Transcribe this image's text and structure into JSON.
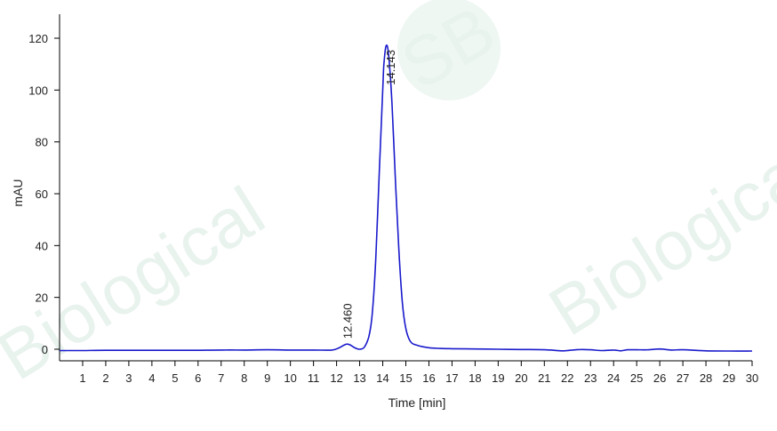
{
  "chart_data": {
    "type": "line",
    "title": "",
    "xlabel": "Time [min]",
    "ylabel": "mAU",
    "xlim": [
      0,
      30
    ],
    "ylim": [
      -3,
      128
    ],
    "x_ticks": [
      1,
      2,
      3,
      4,
      5,
      6,
      7,
      8,
      9,
      10,
      11,
      12,
      13,
      14,
      15,
      16,
      17,
      18,
      19,
      20,
      21,
      22,
      23,
      24,
      25,
      26,
      27,
      28,
      29,
      30
    ],
    "y_ticks": [
      0,
      20,
      40,
      60,
      80,
      100,
      120
    ],
    "grid": false,
    "legend": "none",
    "line_color": "#1a1acc",
    "series": [
      {
        "x": [
          0,
          1,
          2,
          3,
          4,
          5,
          6,
          7,
          8,
          9,
          10,
          11,
          11.8,
          12.1,
          12.3,
          12.46,
          12.6,
          12.8,
          13.0,
          13.2,
          13.4,
          13.55,
          13.7,
          13.85,
          14.0,
          14.05,
          14.143,
          14.25,
          14.4,
          14.55,
          14.7,
          14.85,
          15.0,
          15.2,
          15.5,
          16.0,
          16.5,
          17,
          18,
          19,
          20,
          21,
          21.8,
          22.2,
          22.6,
          23,
          23.5,
          24,
          24.3,
          24.6,
          25,
          25.5,
          26,
          26.5,
          27,
          28,
          29,
          30
        ],
        "y": [
          -0.5,
          -0.5,
          -0.4,
          -0.4,
          -0.4,
          -0.4,
          -0.4,
          -0.3,
          -0.3,
          -0.2,
          -0.3,
          -0.3,
          -0.3,
          0.5,
          1.5,
          2.0,
          1.6,
          0.5,
          0.0,
          0.8,
          5,
          14,
          35,
          68,
          100,
          110,
          117,
          114,
          95,
          65,
          38,
          18,
          8,
          3,
          1.5,
          0.6,
          0.3,
          0.2,
          0.1,
          0.0,
          -0.1,
          -0.2,
          -0.6,
          -0.3,
          -0.1,
          -0.2,
          -0.5,
          -0.3,
          -0.6,
          -0.2,
          -0.2,
          -0.2,
          0.1,
          -0.3,
          -0.2,
          -0.6,
          -0.7,
          -0.7
        ]
      }
    ],
    "annotations": [
      {
        "label": "12.460",
        "x": 12.46,
        "y": 2.0
      },
      {
        "label": "14.143",
        "x": 14.143,
        "y": 117
      }
    ]
  },
  "watermark": {
    "text_a": "SB",
    "text_b": "Biological",
    "color": "#e9f3ee"
  }
}
